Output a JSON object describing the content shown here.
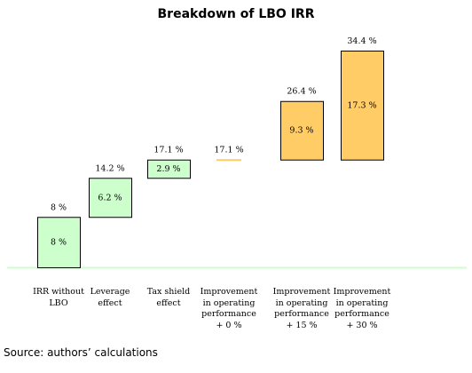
{
  "chart_data": {
    "type": "waterfall",
    "title": "Breakdown of LBO IRR",
    "unit": "%",
    "categories": [
      "IRR without\nLBO",
      "Leverage\neffect",
      "Tax shield\neffect",
      "Improvement\nin operating\nperformance\n+ 0 %",
      "Improvement\nin operating\nperformance\n+ 15 %",
      "Improvement\nin operating\nperformance\n+ 30 %"
    ],
    "bars": [
      {
        "base": 0,
        "value": 8,
        "total": 8,
        "value_label": "8 %",
        "total_label": "8 %",
        "style": "green"
      },
      {
        "base": 8,
        "value": 6.2,
        "total": 14.2,
        "value_label": "6.2 %",
        "total_label": "14.2 %",
        "style": "green"
      },
      {
        "base": 14.2,
        "value": 2.9,
        "total": 17.1,
        "value_label": "2.9 %",
        "total_label": "17.1 %",
        "style": "green"
      },
      {
        "base": 17.1,
        "value": 0,
        "total": 17.1,
        "value_label": "",
        "total_label": "17.1 %",
        "style": "orange-line"
      },
      {
        "base": 17.1,
        "value": 9.3,
        "total": 26.4,
        "value_label": "9.3 %",
        "total_label": "26.4 %",
        "style": "orange"
      },
      {
        "base": 17.1,
        "value": 17.3,
        "total": 34.4,
        "value_label": "17.3 %",
        "total_label": "34.4 %",
        "style": "orange"
      }
    ],
    "ylim": [
      0,
      34.4
    ],
    "colors": {
      "green_fill": "#ccffcc",
      "orange_fill": "#ffcc66",
      "bar_stroke": "#000000",
      "baseline": "#ccffcc",
      "orange_line": "#ffcc66"
    }
  },
  "source_note": "Source: authors’ calculations"
}
